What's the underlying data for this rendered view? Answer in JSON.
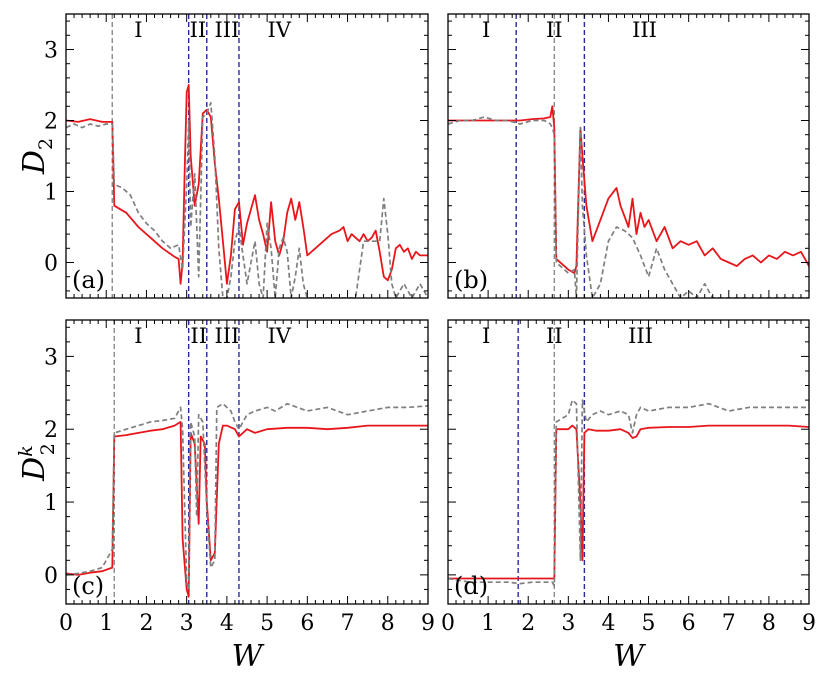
{
  "chart_data": [
    {
      "panel": "(a)",
      "type": "line",
      "ylabel": "D",
      "ylabel_sub": "2",
      "xlabel": "",
      "xlim": [
        0,
        9
      ],
      "ylim": [
        -0.5,
        3.5
      ],
      "xticks": [],
      "yticks": [
        "0",
        "1",
        "2",
        "3"
      ],
      "ytick_values": [
        0,
        1,
        2,
        3
      ],
      "vlines": [
        {
          "x": 1.15,
          "color": "#8a8a8a"
        },
        {
          "x": 3.05,
          "color": "#2a2aa0"
        },
        {
          "x": 3.5,
          "color": "#2a2aa0"
        },
        {
          "x": 4.3,
          "color": "#2a2aa0"
        }
      ],
      "regions": [
        {
          "label": "I",
          "x": 1.8
        },
        {
          "label": "II",
          "x": 3.28
        },
        {
          "label": "III",
          "x": 4.0
        },
        {
          "label": "IV",
          "x": 5.3
        }
      ],
      "series": [
        {
          "color": "#e8161b",
          "dash": false,
          "x": [
            0,
            0.3,
            0.6,
            0.9,
            1.15,
            1.2,
            1.5,
            1.8,
            2.1,
            2.4,
            2.7,
            2.8,
            2.85,
            2.9,
            2.95,
            3.0,
            3.05,
            3.1,
            3.2,
            3.3,
            3.4,
            3.5,
            3.6,
            3.7,
            3.8,
            3.9,
            4.0,
            4.1,
            4.2,
            4.3,
            4.4,
            4.5,
            4.6,
            4.7,
            4.8,
            4.9,
            5.0,
            5.1,
            5.2,
            5.3,
            5.4,
            5.5,
            5.6,
            5.7,
            5.8,
            5.9,
            6.0,
            6.2,
            6.4,
            6.6,
            6.8,
            6.9,
            7.0,
            7.1,
            7.2,
            7.3,
            7.4,
            7.5,
            7.6,
            7.7,
            7.8,
            7.9,
            8.0,
            8.1,
            8.2,
            8.3,
            8.4,
            8.5,
            8.6,
            8.7,
            8.8,
            9.0
          ],
          "y": [
            2.0,
            1.98,
            2.02,
            1.98,
            1.98,
            0.8,
            0.7,
            0.5,
            0.35,
            0.2,
            0.08,
            0.05,
            -0.3,
            0.0,
            1.3,
            2.4,
            2.5,
            1.5,
            0.8,
            1.1,
            2.1,
            2.15,
            2.05,
            1.4,
            0.9,
            0.3,
            -0.3,
            0.1,
            0.75,
            0.85,
            0.25,
            0.55,
            0.75,
            0.95,
            0.6,
            0.4,
            0.15,
            0.85,
            0.3,
            0.1,
            0.3,
            0.7,
            0.9,
            0.6,
            0.85,
            0.5,
            0.1,
            0.2,
            0.3,
            0.4,
            0.45,
            0.5,
            0.3,
            0.4,
            0.35,
            0.3,
            0.4,
            0.3,
            0.35,
            0.45,
            0.15,
            -0.2,
            -0.25,
            -0.1,
            0.2,
            0.25,
            0.15,
            0.2,
            0.05,
            0.15,
            0.1,
            0.1
          ]
        },
        {
          "color": "#7f7f7f",
          "dash": true,
          "x": [
            0,
            0.2,
            0.4,
            0.6,
            0.8,
            1.0,
            1.15,
            1.2,
            1.4,
            1.6,
            1.8,
            2.0,
            2.2,
            2.4,
            2.6,
            2.8,
            2.9,
            3.0,
            3.05,
            3.1,
            3.2,
            3.3,
            3.4,
            3.5,
            3.6,
            3.7,
            3.8,
            3.9,
            4.0,
            4.1,
            4.2,
            4.3,
            4.4,
            4.5,
            4.6,
            4.7,
            4.8,
            4.9,
            5.0,
            5.1,
            5.2,
            5.3,
            5.4,
            5.5,
            5.6,
            5.7,
            5.8,
            5.9,
            6.0,
            6.2,
            6.4,
            6.6,
            6.8,
            7.0,
            7.2,
            7.4,
            7.6,
            7.8,
            7.9,
            8.0,
            8.1,
            8.2,
            8.4,
            8.6,
            8.8,
            9.0
          ],
          "y": [
            1.9,
            1.95,
            1.9,
            1.95,
            1.92,
            1.95,
            1.95,
            1.1,
            1.05,
            0.95,
            0.7,
            0.55,
            0.45,
            0.3,
            0.2,
            0.25,
            -0.1,
            1.1,
            2.0,
            0.5,
            1.25,
            -0.2,
            2.05,
            2.1,
            2.25,
            1.5,
            0.2,
            -0.5,
            -0.5,
            -0.2,
            0.3,
            0.5,
            0.1,
            -0.3,
            0.0,
            0.3,
            -0.3,
            -0.5,
            0.55,
            0.2,
            -0.5,
            0.2,
            0.35,
            0.15,
            -0.5,
            -0.2,
            0.2,
            -0.3,
            -0.5,
            -0.5,
            -0.5,
            -0.5,
            -0.5,
            -0.5,
            -0.5,
            0.3,
            0.3,
            0.3,
            0.9,
            0.4,
            -0.3,
            -0.5,
            -0.3,
            -0.5,
            -0.3,
            -0.5
          ]
        }
      ]
    },
    {
      "panel": "(b)",
      "type": "line",
      "ylabel": "",
      "xlabel": "",
      "xlim": [
        0,
        9
      ],
      "ylim": [
        -0.5,
        3.5
      ],
      "xticks": [],
      "yticks": [],
      "vlines": [
        {
          "x": 1.7,
          "color": "#2a2aa0"
        },
        {
          "x": 2.65,
          "color": "#8a8a8a"
        },
        {
          "x": 3.4,
          "color": "#2a2aa0"
        }
      ],
      "regions": [
        {
          "label": "I",
          "x": 0.95
        },
        {
          "label": "II",
          "x": 2.65
        },
        {
          "label": "III",
          "x": 4.9
        }
      ],
      "series": [
        {
          "color": "#e8161b",
          "dash": false,
          "x": [
            0,
            0.3,
            0.6,
            0.9,
            1.2,
            1.5,
            1.8,
            2.1,
            2.4,
            2.55,
            2.6,
            2.65,
            2.7,
            3.0,
            3.15,
            3.2,
            3.3,
            3.35,
            3.45,
            3.6,
            3.8,
            4.0,
            4.2,
            4.3,
            4.5,
            4.6,
            4.7,
            4.8,
            4.9,
            5.0,
            5.2,
            5.4,
            5.6,
            5.8,
            6.0,
            6.2,
            6.4,
            6.6,
            6.8,
            7.0,
            7.2,
            7.4,
            7.6,
            7.8,
            8.0,
            8.2,
            8.4,
            8.6,
            8.8,
            9.0
          ],
          "y": [
            2.0,
            2.0,
            2.0,
            2.0,
            2.0,
            2.0,
            2.0,
            2.02,
            2.03,
            2.05,
            2.2,
            1.9,
            0.05,
            -0.1,
            -0.15,
            -0.05,
            1.9,
            1.5,
            0.8,
            0.3,
            0.6,
            0.9,
            1.05,
            0.8,
            0.5,
            0.9,
            0.4,
            0.7,
            0.5,
            0.6,
            0.3,
            0.5,
            0.2,
            0.3,
            0.25,
            0.3,
            0.1,
            0.2,
            0.05,
            0.0,
            -0.05,
            0.05,
            0.1,
            0.0,
            0.1,
            0.05,
            0.15,
            0.1,
            0.15,
            -0.05
          ]
        },
        {
          "color": "#7f7f7f",
          "dash": true,
          "x": [
            0,
            0.3,
            0.6,
            0.9,
            1.2,
            1.5,
            1.8,
            2.1,
            2.4,
            2.55,
            2.6,
            2.65,
            2.7,
            3.0,
            3.15,
            3.2,
            3.3,
            3.35,
            3.45,
            3.6,
            3.8,
            4.0,
            4.2,
            4.4,
            4.6,
            4.8,
            5.0,
            5.2,
            5.4,
            5.6,
            5.8,
            6.0,
            6.2,
            6.4,
            6.6,
            6.8,
            7.0,
            7.2,
            7.4,
            7.6,
            7.8,
            8.0,
            8.2,
            8.4,
            8.6,
            8.8,
            9.0
          ],
          "y": [
            1.95,
            2.0,
            2.0,
            2.05,
            2.0,
            2.0,
            1.95,
            2.0,
            2.0,
            1.95,
            1.9,
            1.8,
            0.0,
            -0.15,
            -0.1,
            -0.5,
            1.9,
            0.8,
            0.1,
            -0.5,
            -0.3,
            0.3,
            0.5,
            0.45,
            0.35,
            0.1,
            -0.2,
            0.2,
            -0.1,
            -0.3,
            -0.5,
            -0.4,
            -0.5,
            -0.3,
            -0.5,
            -0.5,
            -0.5,
            -0.5,
            -0.5,
            -0.5,
            -0.5,
            -0.5,
            -0.5,
            -0.5,
            -0.5,
            -0.5,
            -0.5
          ]
        }
      ]
    },
    {
      "panel": "(c)",
      "type": "line",
      "ylabel": "D",
      "ylabel_sub": "2",
      "ylabel_sup": "k",
      "xlabel": "W",
      "xlim": [
        0,
        9
      ],
      "ylim": [
        -0.4,
        3.5
      ],
      "xticks": [
        "0",
        "1",
        "2",
        "3",
        "4",
        "5",
        "6",
        "7",
        "8",
        "9"
      ],
      "yticks": [
        "0",
        "1",
        "2",
        "3"
      ],
      "ytick_values": [
        0,
        1,
        2,
        3
      ],
      "vlines": [
        {
          "x": 1.2,
          "color": "#8a8a8a"
        },
        {
          "x": 3.05,
          "color": "#2a2aa0"
        },
        {
          "x": 3.5,
          "color": "#2a2aa0"
        },
        {
          "x": 4.3,
          "color": "#2a2aa0"
        }
      ],
      "regions": [
        {
          "label": "I",
          "x": 1.8
        },
        {
          "label": "II",
          "x": 3.3
        },
        {
          "label": "III",
          "x": 4.0
        },
        {
          "label": "IV",
          "x": 5.3
        }
      ],
      "series": [
        {
          "color": "#e8161b",
          "dash": false,
          "x": [
            0,
            0.3,
            0.6,
            0.9,
            1.15,
            1.2,
            1.5,
            1.8,
            2.1,
            2.4,
            2.7,
            2.85,
            2.9,
            3.0,
            3.05,
            3.1,
            3.2,
            3.3,
            3.35,
            3.45,
            3.5,
            3.6,
            3.7,
            3.8,
            3.9,
            4.0,
            4.2,
            4.3,
            4.5,
            4.7,
            5.0,
            5.5,
            6.0,
            6.5,
            7.0,
            7.5,
            8.0,
            8.5,
            9.0
          ],
          "y": [
            0.02,
            0.0,
            0.03,
            0.05,
            0.1,
            1.9,
            1.92,
            1.95,
            1.98,
            2.0,
            2.05,
            2.1,
            0.5,
            -0.2,
            -0.3,
            1.95,
            1.8,
            0.7,
            1.9,
            1.8,
            1.0,
            0.2,
            0.3,
            1.8,
            2.05,
            2.05,
            2.0,
            1.9,
            2.0,
            1.95,
            2.0,
            2.02,
            2.02,
            2.0,
            2.02,
            2.05,
            2.05,
            2.05,
            2.05
          ]
        },
        {
          "color": "#7f7f7f",
          "dash": true,
          "x": [
            0,
            0.3,
            0.6,
            0.9,
            1.0,
            1.15,
            1.2,
            1.5,
            1.8,
            2.1,
            2.4,
            2.7,
            2.85,
            2.9,
            3.0,
            3.05,
            3.1,
            3.2,
            3.25,
            3.3,
            3.4,
            3.5,
            3.6,
            3.7,
            3.75,
            3.9,
            4.0,
            4.1,
            4.2,
            4.3,
            4.5,
            4.7,
            5.0,
            5.2,
            5.5,
            6.0,
            6.5,
            7.0,
            7.5,
            8.0,
            8.5,
            9.0
          ],
          "y": [
            0.0,
            0.02,
            0.05,
            0.1,
            0.2,
            0.35,
            1.95,
            2.0,
            2.05,
            2.1,
            2.12,
            2.15,
            2.3,
            2.0,
            -0.1,
            -0.2,
            2.1,
            1.9,
            0.8,
            2.2,
            2.1,
            0.9,
            0.1,
            0.2,
            2.3,
            2.35,
            2.3,
            2.25,
            2.1,
            2.0,
            2.2,
            2.25,
            2.3,
            2.25,
            2.35,
            2.25,
            2.3,
            2.2,
            2.25,
            2.3,
            2.3,
            2.32
          ]
        }
      ]
    },
    {
      "panel": "(d)",
      "type": "line",
      "ylabel": "",
      "xlabel": "W",
      "xlim": [
        0,
        9
      ],
      "ylim": [
        -0.4,
        3.5
      ],
      "xticks": [
        "0",
        "1",
        "2",
        "3",
        "4",
        "5",
        "6",
        "7",
        "8",
        "9"
      ],
      "yticks": [],
      "vlines": [
        {
          "x": 1.75,
          "color": "#2a2aa0"
        },
        {
          "x": 2.65,
          "color": "#8a8a8a"
        },
        {
          "x": 3.4,
          "color": "#2a2aa0"
        }
      ],
      "regions": [
        {
          "label": "I",
          "x": 0.95
        },
        {
          "label": "II",
          "x": 2.65
        },
        {
          "label": "III",
          "x": 4.8
        }
      ],
      "series": [
        {
          "color": "#e8161b",
          "dash": false,
          "x": [
            0,
            0.3,
            0.6,
            0.9,
            1.2,
            1.5,
            1.8,
            2.1,
            2.4,
            2.6,
            2.65,
            2.7,
            3.0,
            3.1,
            3.2,
            3.3,
            3.35,
            3.4,
            3.5,
            3.7,
            4.0,
            4.3,
            4.5,
            4.6,
            4.7,
            4.8,
            5.0,
            5.5,
            6.0,
            6.5,
            7.0,
            7.5,
            8.0,
            8.5,
            9.0
          ],
          "y": [
            -0.05,
            -0.05,
            -0.05,
            -0.05,
            -0.05,
            -0.05,
            -0.05,
            -0.05,
            -0.05,
            -0.05,
            -0.05,
            2.0,
            2.0,
            2.05,
            2.0,
            1.0,
            0.2,
            1.95,
            2.0,
            1.98,
            1.98,
            2.0,
            1.95,
            1.88,
            1.9,
            2.0,
            2.02,
            2.03,
            2.03,
            2.05,
            2.05,
            2.05,
            2.05,
            2.05,
            2.03
          ]
        },
        {
          "color": "#7f7f7f",
          "dash": true,
          "x": [
            0,
            0.3,
            0.6,
            0.9,
            1.2,
            1.5,
            1.8,
            2.1,
            2.4,
            2.6,
            2.65,
            2.7,
            3.0,
            3.1,
            3.2,
            3.3,
            3.35,
            3.45,
            3.6,
            3.8,
            4.0,
            4.3,
            4.5,
            4.6,
            4.7,
            4.8,
            5.0,
            5.5,
            6.0,
            6.5,
            7.0,
            7.5,
            8.0,
            8.5,
            9.0
          ],
          "y": [
            -0.05,
            -0.08,
            -0.1,
            -0.1,
            -0.1,
            -0.1,
            -0.12,
            -0.1,
            -0.1,
            -0.1,
            -0.15,
            2.1,
            2.2,
            2.4,
            2.35,
            0.2,
            2.4,
            2.1,
            2.2,
            2.25,
            2.2,
            2.25,
            2.2,
            1.95,
            2.2,
            2.3,
            2.25,
            2.3,
            2.3,
            2.35,
            2.25,
            2.3,
            2.3,
            2.3,
            2.3
          ]
        }
      ]
    }
  ]
}
